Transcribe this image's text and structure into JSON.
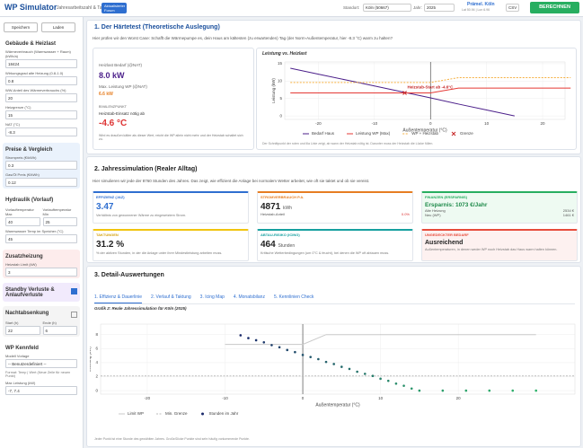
{
  "header": {
    "title": "WP Simulator",
    "subtitle": "Jahresarbeitszahl & Taktung",
    "badge": "Aktualisierter Forum",
    "location_label": "Standort:",
    "location": "Köln (50667)",
    "year_label": "Jahr:",
    "year": "2025",
    "user": "Prämel. Köln",
    "user_sub": "Lat 50.94 | Lon 6.96",
    "csv": "CSV",
    "calc": "BERECHNEN"
  },
  "sidebar": {
    "buttons": [
      "Speichern",
      "Laden"
    ],
    "sections": [
      {
        "title": "Gebäude & Heizlast",
        "fields": [
          {
            "label": "Wärmeverbrauch (Warmwasser + Raum) (kWh/a)",
            "value": "18424"
          },
          {
            "label": "Wirkungsgrad alte Heizung (0.8-1.0)",
            "value": "0.8"
          },
          {
            "label": "WW-Anteil des Wärmeverbrauchs (%)",
            "value": "20"
          },
          {
            "label": "Heizgrenze (°C)",
            "value": "15"
          },
          {
            "label": "NAT (°C)",
            "value": "-8.3"
          }
        ]
      },
      {
        "title": "Preise & Vergleich",
        "fields": [
          {
            "label": "Strompreis (€/kWh)",
            "value": "0.3"
          },
          {
            "label": "Gas/Öl Preis (€/kWh)",
            "value": "0.12"
          }
        ]
      },
      {
        "title": "Hydraulik (Vorlauf)",
        "fields": [
          [
            {
              "label": "Vorlauftemperatur Max",
              "value": "40"
            },
            {
              "label": "Vorlauftemperatur Min",
              "value": "25"
            }
          ],
          {
            "label": "Warmwasser Temp im Speicher (°C)",
            "value": "45"
          }
        ]
      },
      {
        "title": "Zusatzheizung",
        "fields": [
          {
            "label": "Heizstab Limit (kW)",
            "value": "3"
          }
        ]
      },
      {
        "title": "Standby Verluste & Anlaufverluste",
        "checked": true
      },
      {
        "title": "Nachtabsenkung",
        "checked": false,
        "fields": [
          [
            {
              "label": "Start (h)",
              "value": "22"
            },
            {
              "label": "Ende (h)",
              "value": "6"
            }
          ]
        ]
      },
      {
        "title": "WP Kennfeld",
        "fields": [
          {
            "label": "Modell Vorlage",
            "value": "-- Benutzerdefiniert --"
          },
          {
            "note": "Format: Temp | Wert (Neue Zeile für neuen Punkt)"
          },
          {
            "label": "Max Leistung (kW)",
            "value": "-7, 7.4"
          }
        ]
      }
    ]
  },
  "s1": {
    "title": "1. Der Härtetest (Theoretische Auslegung)",
    "intro": "Hier prüfen wir den Worst Case: Schafft die Wärmepumpe es, dein Haus am kältesten (zu erwartenden) Tag (der Norm-Außentemperatur, hier -8.3 °C) warm zu halten?",
    "demand_label": "Heizlast Bedarf (@NAT)",
    "demand": "8.0 kW",
    "max_label": "Max. Leistung WP (@NAT)",
    "max": "6.6 kW",
    "biv_label": "BIVALENZPUNKT",
    "biv_text": "Heizstab-Einsatz nötig ab",
    "biv": "-4.6 °C",
    "biv_note": "Wird es draußen kälter als dieser Wert, reicht die WP allein nicht mehr und der Heizstab schaltet sich zu.",
    "chart_note": "Der Schnittpunkt der roten und lila Linie zeigt, ab wann der Heizstab nötig ist. Darunter muss der Heizstab die Lücke füllen."
  },
  "s2": {
    "title": "2. Jahressimulation (Realer Alltag)",
    "intro": "Hier simulieren wir jede der 8760 Stunden des Jahres. Das zeigt, wie effizient die Anlage bei normalem Wetter arbeitet, wie oft sie taktet und ob sie vereist.",
    "cards": [
      {
        "label": "EFFIZIENZ (JAZ)",
        "value": "3.47",
        "note": "Verhältnis von gewonnener Wärme zu eingesetztem Strom."
      },
      {
        "label": "STROMVERBRAUCH P.A.",
        "value": "4871",
        "unit": "kWh",
        "rows": [
          [
            "Heizstab-Anteil",
            "0.0%"
          ]
        ]
      },
      {
        "label": "FINANZEN (ERSPARNIS)",
        "value": "Ersparnis: 1073 €/Jahr",
        "rows": [
          [
            "Alte Heizung",
            "2534 €"
          ],
          [
            "Neu (WP)",
            "1461 €"
          ]
        ]
      },
      {
        "label": "TAKTUNGEN",
        "value": "31.2 %",
        "note": "% der aktiven Stunden, in der die Anlage unter ihrer Mindestleistung arbeiten muss."
      },
      {
        "label": "ABTAU-RISIKO (ICING)",
        "value": "464",
        "unit": "Stunden",
        "note": "Kritische Wetterbedingungen (um 0°C & feucht), bei denen die WP oft abtauen muss."
      },
      {
        "label": "UNGEDECKTER BEDARF",
        "value": "Ausreichend",
        "note": "Außentemperaturen, in denen weder WP noch Heizstab das Haus warm halten können."
      }
    ]
  },
  "s3": {
    "title": "3. Detail-Auswertungen",
    "tabs": [
      "1. Effizienz & Dauerlinie",
      "2. Verlauf & Taktung",
      "3. Icing Map",
      "4. Monatsbilanz",
      "5. Kennlinien Check"
    ],
    "footnote": "Jeder Punkt ist eine Stunde des gewählten Jahres. Große/Dicke Punkte sind sehr häufig vorkommende Punkte."
  },
  "chart_data": [
    {
      "type": "line",
      "title": "Leistung vs. Heizlast",
      "x_label": "Außentemperatur (°C)",
      "y_label": "Leistung (kW)",
      "xlim": [
        -26,
        24
      ],
      "ylim": [
        -1,
        15.5
      ],
      "xticks": [
        -20,
        -10,
        0,
        10,
        20
      ],
      "yticks": [
        0,
        5,
        10,
        15
      ],
      "x": [
        -25,
        -20,
        -15,
        -10,
        -5,
        0,
        5,
        10,
        15,
        20,
        25
      ],
      "series": [
        {
          "name": "Bedarf Haus",
          "color": "#4b1f8a",
          "style": "line",
          "values": [
            13.7,
            12.0,
            10.3,
            8.6,
            6.9,
            5.2,
            3.4,
            1.7,
            0,
            null,
            null
          ]
        },
        {
          "name": "Leistung WP (Max)",
          "color": "#e53935",
          "style": "line",
          "values": [
            6.6,
            6.6,
            6.6,
            6.6,
            6.6,
            6.6,
            8.0,
            8.0,
            8.0,
            8.0,
            8.0
          ]
        },
        {
          "name": "WP + Heizstab",
          "color": "#f5b041",
          "style": "dashed",
          "values": [
            9.6,
            9.6,
            9.6,
            9.6,
            9.6,
            9.6,
            11.0,
            11.0,
            11.0,
            11.0,
            11.0
          ]
        },
        {
          "name": "Grenze",
          "color": "#c62828",
          "style": "x",
          "x": [
            -4.6
          ],
          "values": [
            6.6
          ]
        }
      ],
      "annotation": "Heizstab-Start ab -4.6°C"
    },
    {
      "type": "scatter",
      "title": "Grafik 2: Reale Jahressimulation für Köln (2025)",
      "x_label": "Außentemperatur (°C)",
      "y_label": "Leistung (kW)",
      "xlim": [
        -26,
        35
      ],
      "ylim": [
        -0.5,
        9.5
      ],
      "xticks": [
        -20,
        -10,
        0,
        10,
        20
      ],
      "yticks": [
        0,
        2,
        4,
        6,
        8
      ],
      "series": [
        {
          "name": "Limit WP",
          "color": "#c8c8c8",
          "style": "line",
          "x": [
            -10,
            0,
            3,
            30
          ],
          "values": [
            6.6,
            6.6,
            8.0,
            8.0
          ]
        },
        {
          "name": "Min. Grenze",
          "color": "#bbbbbb",
          "style": "dashed",
          "x": [
            -26,
            35
          ],
          "values": [
            2.1,
            2.1
          ]
        },
        {
          "name": "Stunden im Jahr",
          "color": "#1b2a6b",
          "colormap": [
            "#1b2a6b",
            "#2fb36b"
          ],
          "style": "points",
          "x": [
            -8,
            -7,
            -6,
            -5,
            -4,
            -3,
            -2,
            -1,
            0,
            1,
            2,
            3,
            4,
            5,
            6,
            7,
            8,
            9,
            10,
            11,
            12,
            13,
            14,
            15,
            18,
            21,
            24,
            27,
            30
          ],
          "values": [
            7.9,
            7.5,
            7.2,
            6.9,
            6.5,
            6.2,
            5.8,
            5.5,
            5.1,
            4.8,
            4.5,
            4.1,
            3.8,
            3.4,
            3.1,
            2.7,
            2.4,
            2.1,
            1.7,
            1.4,
            1.0,
            0.7,
            0.3,
            0,
            0,
            0,
            0,
            0,
            0
          ]
        }
      ]
    }
  ]
}
